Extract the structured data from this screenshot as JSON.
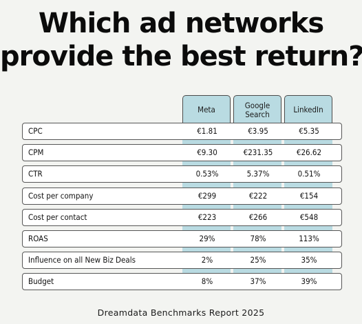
{
  "title_lines": [
    "Which ad networks",
    "provide the best return?"
  ],
  "footer": "Dreamdata Benchmarks Report 2025",
  "colors": {
    "accent": "#b9dbe2",
    "background": "#f3f4f1",
    "row_bg": "#ffffff",
    "border": "#555555"
  },
  "chart_data": {
    "type": "table",
    "title": "Which ad networks provide the best return?",
    "columns": [
      "Meta",
      "Google Search",
      "LinkedIn"
    ],
    "column_display": [
      [
        "Meta"
      ],
      [
        "Google",
        "Search"
      ],
      [
        "LinkedIn"
      ]
    ],
    "rows": [
      {
        "label": "CPC",
        "values": [
          "€1.81",
          "€3.95",
          "€5.35"
        ]
      },
      {
        "label": "CPM",
        "values": [
          "€9.30",
          "€231.35",
          "€26.62"
        ]
      },
      {
        "label": "CTR",
        "values": [
          "0.53%",
          "5.37%",
          "0.51%"
        ]
      },
      {
        "label": "Cost per company",
        "values": [
          "€299",
          "€222",
          "€154"
        ]
      },
      {
        "label": "Cost per contact",
        "values": [
          "€223",
          "€266",
          "€548"
        ]
      },
      {
        "label": "ROAS",
        "values": [
          "29%",
          "78%",
          "113%"
        ]
      },
      {
        "label": "Influence on all New Biz Deals",
        "values": [
          "2%",
          "25%",
          "35%"
        ]
      },
      {
        "label": "Budget",
        "values": [
          "8%",
          "37%",
          "39%"
        ]
      }
    ]
  }
}
